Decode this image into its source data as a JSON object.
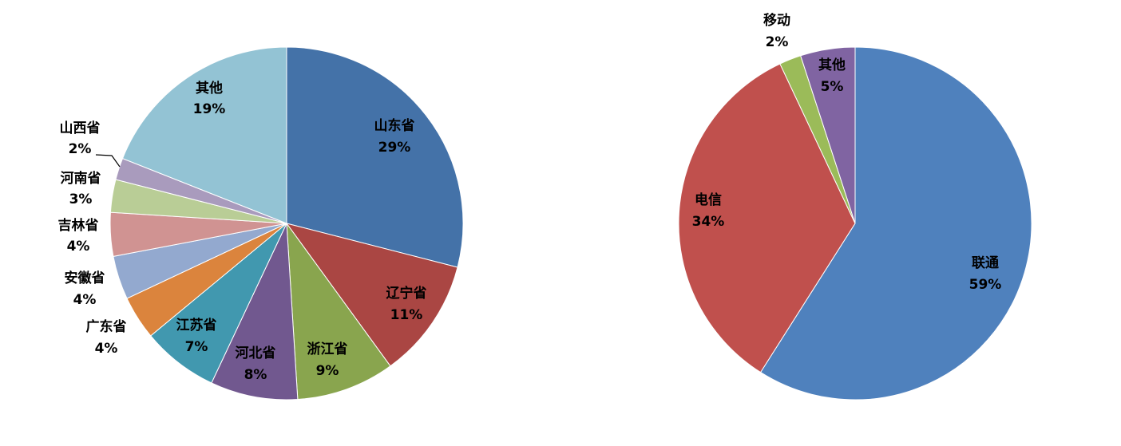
{
  "chart_data": [
    {
      "type": "pie",
      "title": "",
      "start_angle_deg": 0,
      "direction": "clockwise",
      "slices": [
        {
          "label": "山东省",
          "pct_text": "29%",
          "value": 29,
          "color": "#4472A8"
        },
        {
          "label": "辽宁省",
          "pct_text": "11%",
          "value": 11,
          "color": "#AA4643"
        },
        {
          "label": "浙江省",
          "pct_text": "9%",
          "value": 9,
          "color": "#89A54E"
        },
        {
          "label": "河北省",
          "pct_text": "8%",
          "value": 8,
          "color": "#71588F"
        },
        {
          "label": "江苏省",
          "pct_text": "7%",
          "value": 7,
          "color": "#4198AF"
        },
        {
          "label": "广东省",
          "pct_text": "4%",
          "value": 4,
          "color": "#DB843D"
        },
        {
          "label": "安徽省",
          "pct_text": "4%",
          "value": 4,
          "color": "#93A9CF"
        },
        {
          "label": "吉林省",
          "pct_text": "4%",
          "value": 4,
          "color": "#D09392"
        },
        {
          "label": "河南省",
          "pct_text": "3%",
          "value": 3,
          "color": "#B9CD96"
        },
        {
          "label": "山西省",
          "pct_text": "2%",
          "value": 2,
          "color": "#A99BBD"
        },
        {
          "label": "其他",
          "pct_text": "19%",
          "value": 19,
          "color": "#93C3D4"
        }
      ]
    },
    {
      "type": "pie",
      "title": "",
      "start_angle_deg": 0,
      "direction": "clockwise",
      "slices": [
        {
          "label": "联通",
          "pct_text": "59%",
          "value": 59,
          "color": "#4F81BD"
        },
        {
          "label": "电信",
          "pct_text": "34%",
          "value": 34,
          "color": "#C0504D"
        },
        {
          "label": "移动",
          "pct_text": "2%",
          "value": 2,
          "color": "#9BBB59"
        },
        {
          "label": "其他",
          "pct_text": "5%",
          "value": 5,
          "color": "#8064A2"
        }
      ]
    }
  ]
}
